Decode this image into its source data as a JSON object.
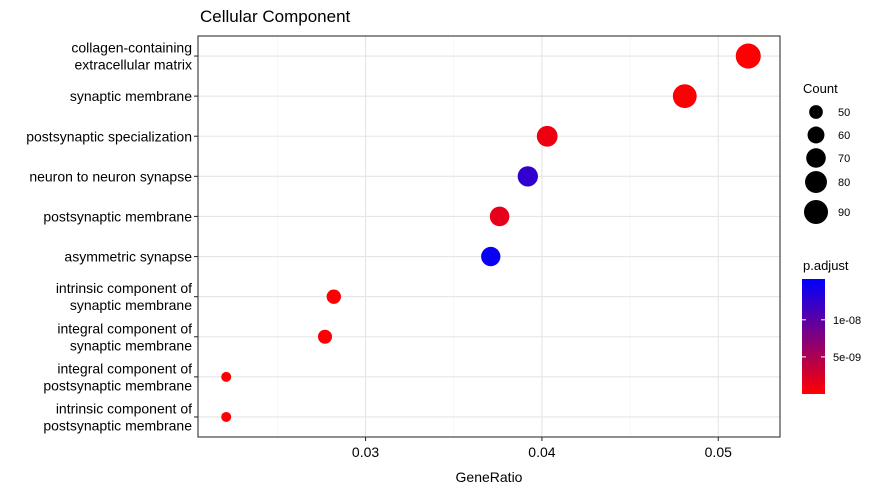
{
  "chart_data": {
    "type": "scatter",
    "title": "Cellular Component",
    "xlabel": "GeneRatio",
    "ylabel": "",
    "xlim": [
      0.0205,
      0.0535
    ],
    "x_ticks": [
      0.03,
      0.04,
      0.05
    ],
    "x_tick_labels": [
      "0.03",
      "0.04",
      "0.05"
    ],
    "grid": true,
    "categories": [
      [
        "collagen-containing",
        "extracellular matrix"
      ],
      [
        "synaptic membrane"
      ],
      [
        "postsynaptic specialization"
      ],
      [
        "neuron to neuron synapse"
      ],
      [
        "postsynaptic membrane"
      ],
      [
        "asymmetric synapse"
      ],
      [
        "intrinsic component of",
        "synaptic membrane"
      ],
      [
        "integral component of",
        "synaptic membrane"
      ],
      [
        "integral component of",
        "postsynaptic membrane"
      ],
      [
        "intrinsic component of",
        "postsynaptic membrane"
      ]
    ],
    "points": [
      {
        "x": 0.0517,
        "count": 95,
        "p_adjust": 1e-10
      },
      {
        "x": 0.0481,
        "count": 89,
        "p_adjust": 2e-10
      },
      {
        "x": 0.0403,
        "count": 75,
        "p_adjust": 1e-09
      },
      {
        "x": 0.0392,
        "count": 73,
        "p_adjust": 1.25e-08
      },
      {
        "x": 0.0376,
        "count": 70,
        "p_adjust": 1.5e-09
      },
      {
        "x": 0.0371,
        "count": 69,
        "p_adjust": 1.5e-08
      },
      {
        "x": 0.0282,
        "count": 52,
        "p_adjust": 2e-10
      },
      {
        "x": 0.0277,
        "count": 51,
        "p_adjust": 2e-10
      },
      {
        "x": 0.0221,
        "count": 41,
        "p_adjust": 2e-10
      },
      {
        "x": 0.0221,
        "count": 41,
        "p_adjust": 2e-10
      }
    ],
    "legend_count": {
      "title": "Count",
      "values": [
        50,
        60,
        70,
        80,
        90
      ],
      "placement": "right"
    },
    "legend_color": {
      "title": "p.adjust",
      "min": 0,
      "max": 1.55e-08,
      "ticks": [
        5e-09,
        1e-08
      ],
      "tick_labels": [
        "5e-09",
        "1e-08"
      ],
      "low_color": "#ff0000",
      "high_color": "#0000ff",
      "placement": "right"
    }
  }
}
